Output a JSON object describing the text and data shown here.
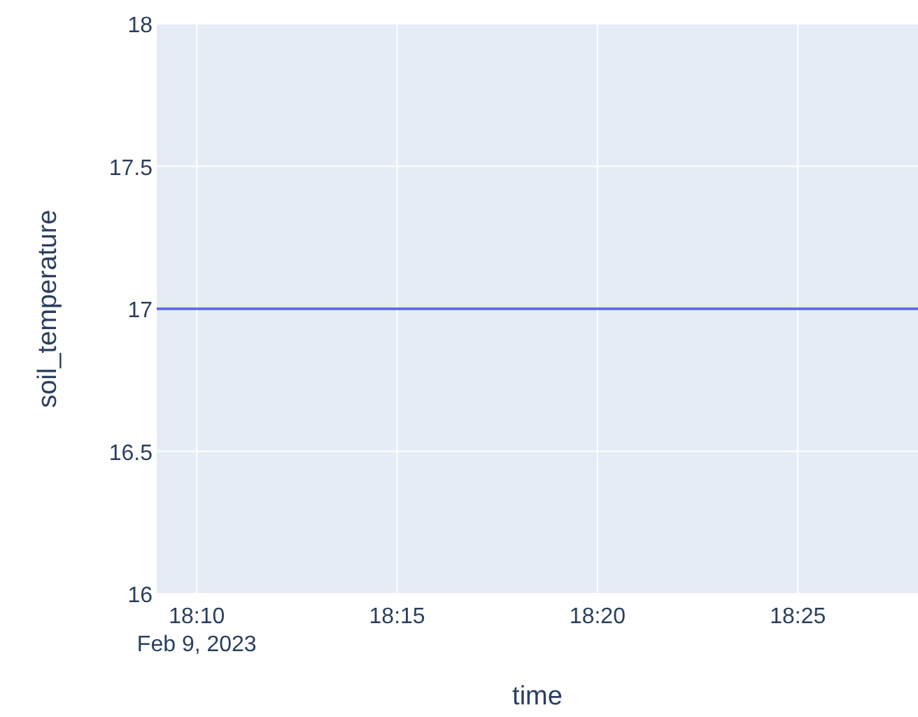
{
  "chart_data": {
    "type": "line",
    "xlabel": "time",
    "ylabel": "soil_temperature",
    "x": [
      "2023-02-09T18:09",
      "2023-02-09T18:28"
    ],
    "series": [
      {
        "color": "#636efa",
        "values": [
          17,
          17
        ]
      }
    ],
    "xlim": [
      "2023-02-09T18:09",
      "2023-02-09T18:28"
    ],
    "xticks": [
      {
        "value": "2023-02-09T18:10",
        "label": "18:10\nFeb 9, 2023"
      },
      {
        "value": "2023-02-09T18:15",
        "label": "18:15"
      },
      {
        "value": "2023-02-09T18:20",
        "label": "18:20"
      },
      {
        "value": "2023-02-09T18:25",
        "label": "18:25"
      }
    ],
    "ylim": [
      16,
      18
    ],
    "yticks": [
      16,
      16.5,
      17,
      17.5,
      18
    ],
    "grid": true,
    "line_style": "solid"
  }
}
